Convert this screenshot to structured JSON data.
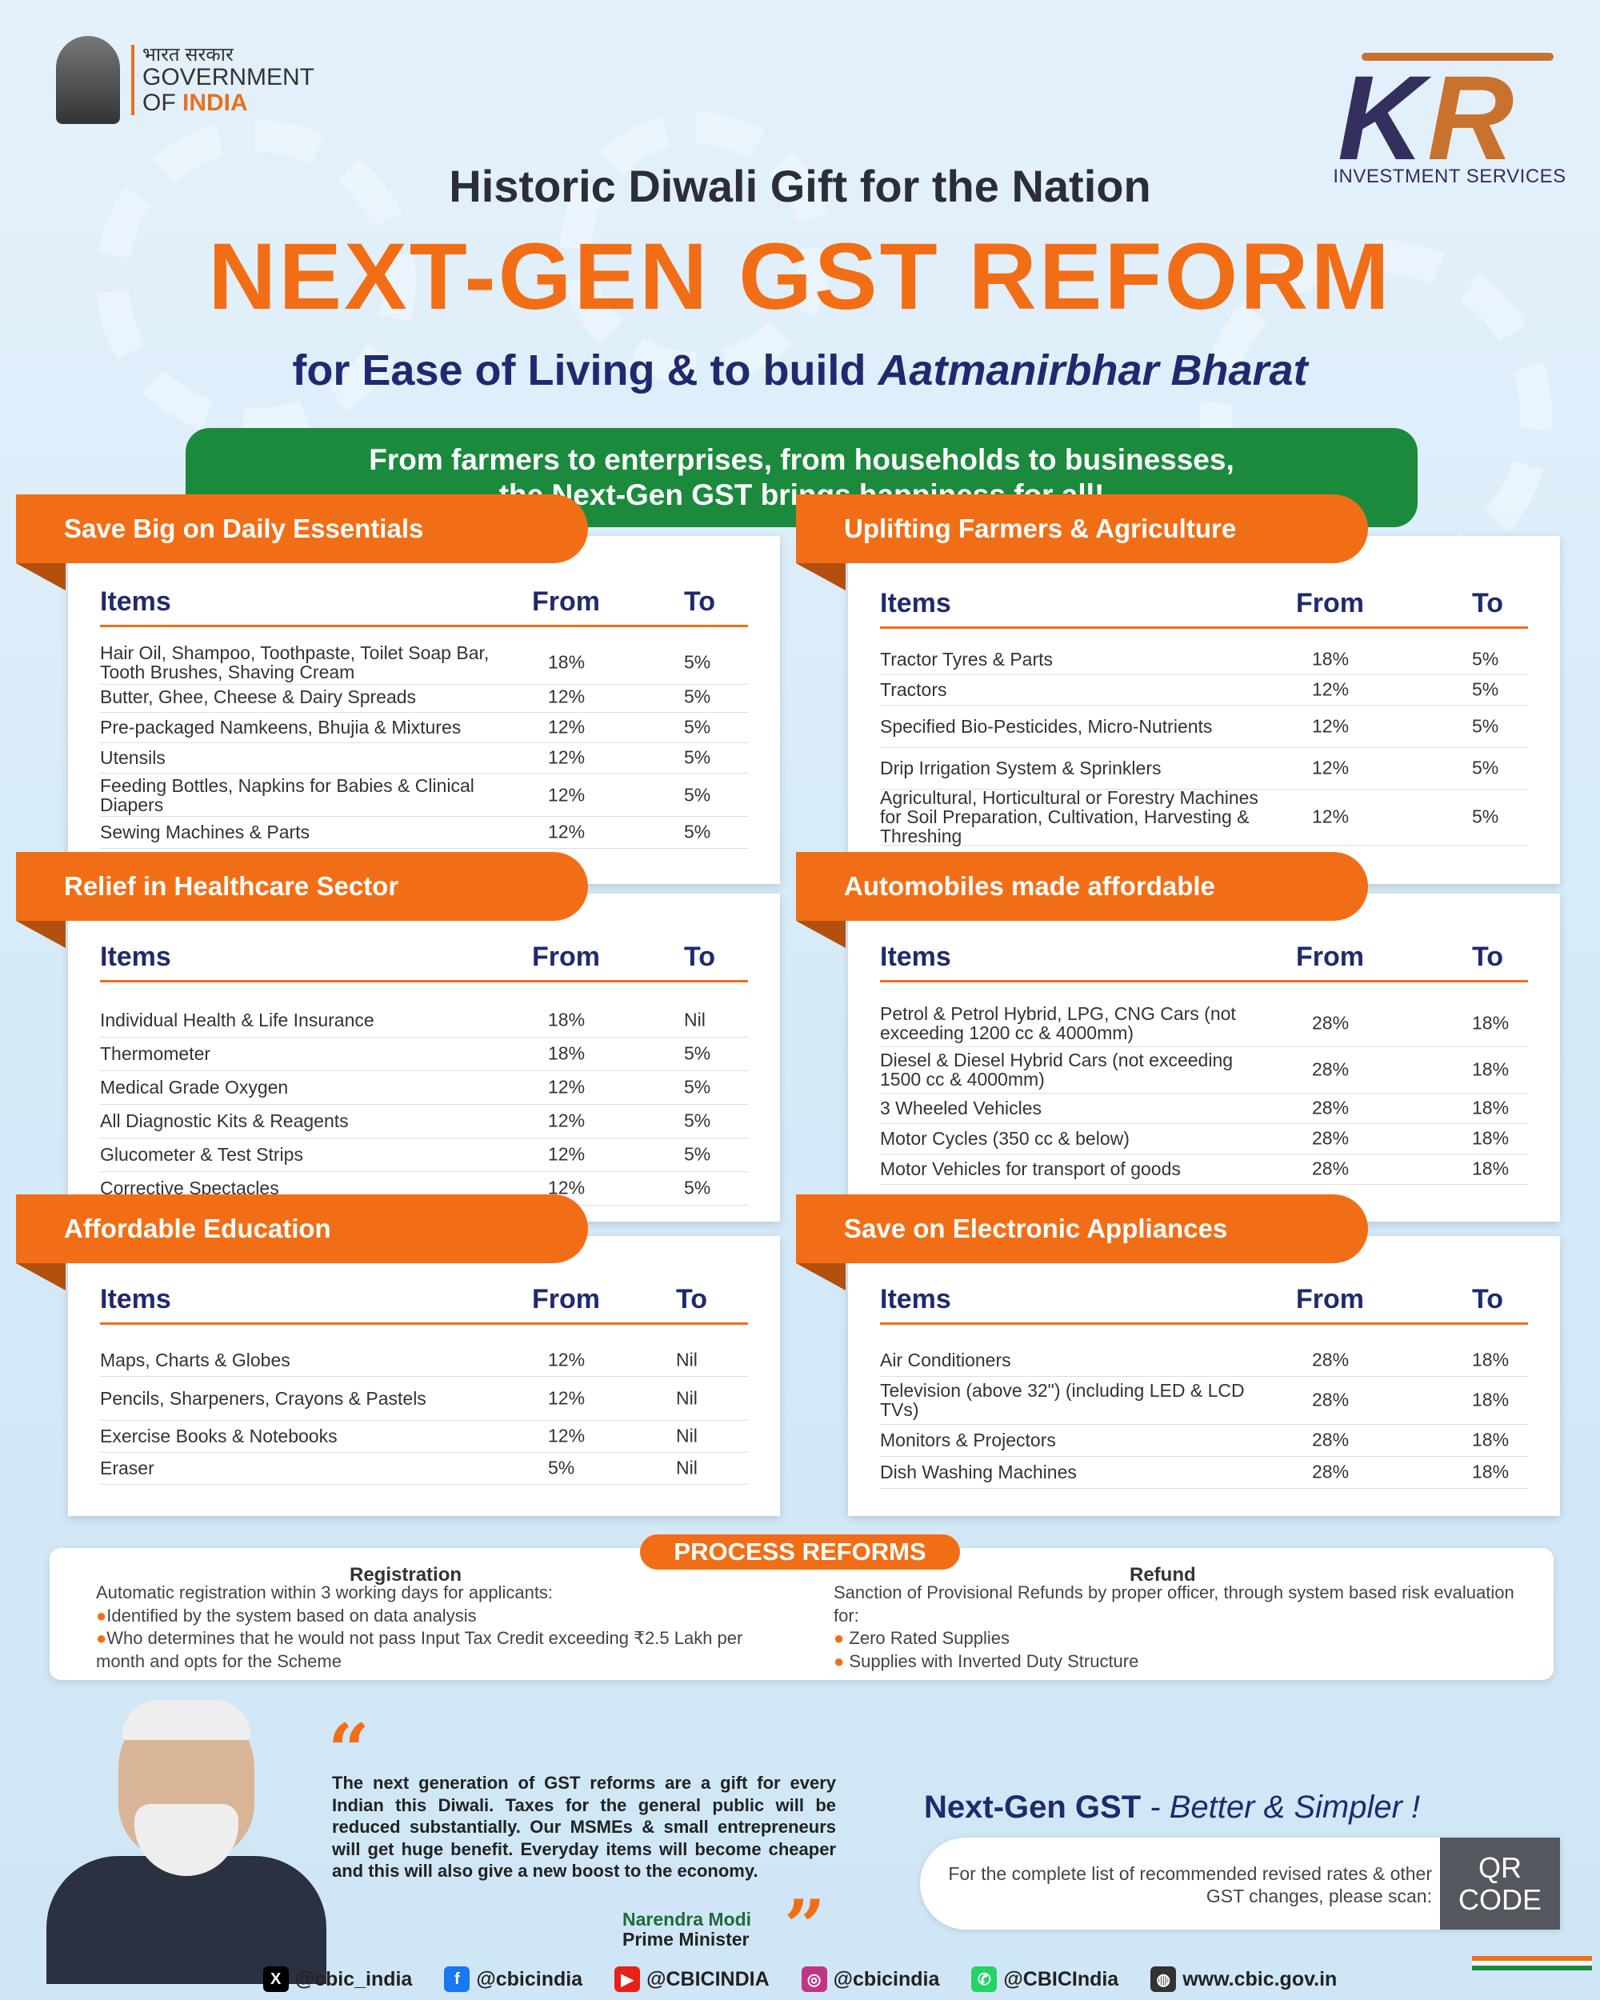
{
  "header": {
    "gov_hindi": "भारत सरकार",
    "gov_line1": "GOVERNMENT",
    "gov_of": "OF ",
    "gov_india": "INDIA",
    "brand_name": "INVESTMENT SERVICES",
    "brand_letters": [
      "K",
      "R"
    ]
  },
  "title": {
    "pre": "Historic Diwali Gift for the Nation",
    "main": "NEXT-GEN GST REFORM",
    "sub_plain": "for Ease of Living & to build ",
    "sub_italic": "Aatmanirbhar Bharat"
  },
  "banner": {
    "line1": "From farmers to enterprises, from households to businesses,",
    "line2": "the Next-Gen GST brings happiness for all!"
  },
  "headers": {
    "items": "Items",
    "from": "From",
    "to": "To"
  },
  "sections": [
    {
      "title": "Save Big on Daily Essentials",
      "rows": [
        {
          "item": "Hair Oil, Shampoo, Toothpaste, Toilet Soap Bar, Tooth Brushes, Shaving Cream",
          "from": "18%",
          "to": "5%"
        },
        {
          "item": "Butter, Ghee, Cheese & Dairy Spreads",
          "from": "12%",
          "to": "5%"
        },
        {
          "item": "Pre-packaged Namkeens, Bhujia & Mixtures",
          "from": "12%",
          "to": "5%"
        },
        {
          "item": "Utensils",
          "from": "12%",
          "to": "5%"
        },
        {
          "item": "Feeding Bottles, Napkins for Babies & Clinical Diapers",
          "from": "12%",
          "to": "5%"
        },
        {
          "item": "Sewing Machines & Parts",
          "from": "12%",
          "to": "5%"
        }
      ]
    },
    {
      "title": "Uplifting Farmers & Agriculture",
      "rows": [
        {
          "item": "Tractor Tyres & Parts",
          "from": "18%",
          "to": "5%"
        },
        {
          "item": "Tractors",
          "from": "12%",
          "to": "5%"
        },
        {
          "item": "Specified Bio-Pesticides, Micro-Nutrients",
          "from": "12%",
          "to": "5%"
        },
        {
          "item": "Drip Irrigation System & Sprinklers",
          "from": "12%",
          "to": "5%"
        },
        {
          "item": "Agricultural, Horticultural or Forestry Machines for Soil Preparation, Cultivation, Harvesting & Threshing",
          "from": "12%",
          "to": "5%"
        }
      ]
    },
    {
      "title": "Relief in Healthcare Sector",
      "rows": [
        {
          "item": "Individual Health & Life Insurance",
          "from": "18%",
          "to": "Nil"
        },
        {
          "item": "Thermometer",
          "from": "18%",
          "to": "5%"
        },
        {
          "item": "Medical Grade Oxygen",
          "from": "12%",
          "to": "5%"
        },
        {
          "item": "All Diagnostic Kits & Reagents",
          "from": "12%",
          "to": "5%"
        },
        {
          "item": "Glucometer & Test Strips",
          "from": "12%",
          "to": "5%"
        },
        {
          "item": "Corrective Spectacles",
          "from": "12%",
          "to": "5%"
        }
      ]
    },
    {
      "title": "Automobiles made affordable",
      "rows": [
        {
          "item": "Petrol & Petrol Hybrid, LPG, CNG Cars (not exceeding 1200 cc & 4000mm)",
          "from": "28%",
          "to": "18%"
        },
        {
          "item": "Diesel & Diesel Hybrid Cars (not exceeding 1500 cc & 4000mm)",
          "from": "28%",
          "to": "18%"
        },
        {
          "item": "3 Wheeled Vehicles",
          "from": "28%",
          "to": "18%"
        },
        {
          "item": "Motor Cycles (350 cc & below)",
          "from": "28%",
          "to": "18%"
        },
        {
          "item": "Motor Vehicles for transport of goods",
          "from": "28%",
          "to": "18%"
        }
      ]
    },
    {
      "title": "Affordable Education",
      "rows": [
        {
          "item": "Maps, Charts & Globes",
          "from": "12%",
          "to": "Nil"
        },
        {
          "item": "Pencils, Sharpeners, Crayons & Pastels",
          "from": "12%",
          "to": "Nil"
        },
        {
          "item": "Exercise Books & Notebooks",
          "from": "12%",
          "to": "Nil"
        },
        {
          "item": "Eraser",
          "from": "5%",
          "to": "Nil"
        }
      ]
    },
    {
      "title": "Save on Electronic Appliances",
      "rows": [
        {
          "item": "Air Conditioners",
          "from": "28%",
          "to": "18%"
        },
        {
          "item": "Television (above 32\") (including LED & LCD TVs)",
          "from": "28%",
          "to": "18%"
        },
        {
          "item": "Monitors & Projectors",
          "from": "28%",
          "to": "18%"
        },
        {
          "item": "Dish Washing Machines",
          "from": "28%",
          "to": "18%"
        }
      ]
    }
  ],
  "process": {
    "title": "PROCESS REFORMS",
    "registration": {
      "heading": "Registration",
      "intro": "Automatic registration within 3 working days for applicants:",
      "bullets": [
        "Identified by the system based on data analysis",
        "Who determines that he would not pass Input Tax Credit exceeding ₹2.5 Lakh per month and opts for the Scheme"
      ]
    },
    "refund": {
      "heading": "Refund",
      "intro": "Sanction of Provisional Refunds by proper officer, through system based risk evaluation for:",
      "bullets": [
        "Zero Rated Supplies",
        "Supplies with Inverted Duty Structure"
      ]
    }
  },
  "quote": {
    "text": "The next generation of GST reforms are a gift for every Indian this Diwali. Taxes for the general public will be reduced substantially. Our MSMEs & small entrepreneurs will get huge benefit. Everyday items will become cheaper and this will also give a new boost to the economy.",
    "name": "Narendra Modi",
    "role": "Prime Minister"
  },
  "cta": {
    "bold": "Next-Gen GST",
    "italic": " - Better & Simpler !",
    "scan_text": "For the complete list of recommended revised rates & other GST changes, please scan:",
    "qr_line1": "QR",
    "qr_line2": "CODE"
  },
  "footer": [
    {
      "icon": "x-icon",
      "handle": "@cbic_india",
      "color": "#000000"
    },
    {
      "icon": "facebook-icon",
      "handle": "@cbicindia",
      "color": "#1877f2"
    },
    {
      "icon": "youtube-icon",
      "handle": "@CBICINDIA",
      "color": "#e62117"
    },
    {
      "icon": "instagram-icon",
      "handle": "@cbicindia",
      "color": "#c13584"
    },
    {
      "icon": "whatsapp-icon",
      "handle": "@CBICIndia",
      "color": "#25d366"
    },
    {
      "icon": "globe-icon",
      "handle": "www.cbic.gov.in",
      "color": "#333333"
    }
  ]
}
